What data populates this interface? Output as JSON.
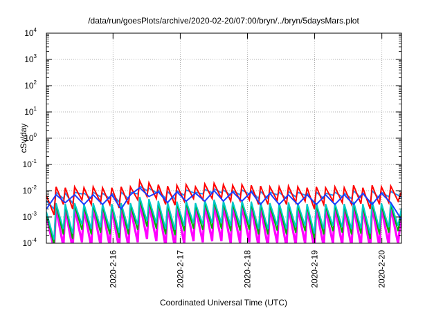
{
  "chart_data": {
    "type": "line",
    "title": "/data/run/goesPlots/archive/2020-02-20/07:00/bryn/../bryn/5daysMars.plot",
    "xlabel": "Coordinated Universal Time (UTC)",
    "ylabel": "cSv/day",
    "yscale": "log",
    "ylim": [
      0.0001,
      10000
    ],
    "xlim": [
      "2020-02-15T00:12",
      "2020-02-20T07:00"
    ],
    "grid": true,
    "y_ticks": [
      {
        "base": "10",
        "exp": "-4"
      },
      {
        "base": "10",
        "exp": "-3"
      },
      {
        "base": "10",
        "exp": "-2"
      },
      {
        "base": "10",
        "exp": "-1"
      },
      {
        "base": "10",
        "exp": "0"
      },
      {
        "base": "10",
        "exp": "1"
      },
      {
        "base": "10",
        "exp": "2"
      },
      {
        "base": "10",
        "exp": "3"
      },
      {
        "base": "10",
        "exp": "4"
      }
    ],
    "x_ticks": [
      "2020-2-16",
      "2020-2-17",
      "2020-2-18",
      "2020-2-19",
      "2020-2-20"
    ],
    "series_colors": [
      "#ff0000",
      "#1a3cff",
      "#00c8c8",
      "#00b000",
      "#ff00ff",
      "#1e90ff"
    ],
    "series": [
      {
        "color": "#ff0000",
        "x": [
          "2020-02-15T00:12",
          "2020-02-15T02:56",
          "2020-02-15T03:39",
          "2020-02-15T06:17",
          "2020-02-15T06:57",
          "2020-02-15T09:36",
          "2020-02-15T10:17",
          "2020-02-15T12:55",
          "2020-02-15T13:37",
          "2020-02-15T16:14",
          "2020-02-15T16:55",
          "2020-02-15T19:33",
          "2020-02-15T20:15",
          "2020-02-15T22:52",
          "2020-02-15T23:34",
          "2020-02-16T02:12",
          "2020-02-16T02:53",
          "2020-02-16T05:31",
          "2020-02-16T06:12",
          "2020-02-16T08:50",
          "2020-02-16T09:31",
          "2020-02-16T12:09",
          "2020-02-16T12:50",
          "2020-02-16T15:28",
          "2020-02-16T16:10",
          "2020-02-16T18:48",
          "2020-02-16T19:29",
          "2020-02-16T22:07",
          "2020-02-16T22:48",
          "2020-02-17T01:26",
          "2020-02-17T02:07",
          "2020-02-17T04:45",
          "2020-02-17T05:26",
          "2020-02-17T08:04",
          "2020-02-17T08:46",
          "2020-02-17T11:24",
          "2020-02-17T12:05",
          "2020-02-17T14:43",
          "2020-02-17T15:24",
          "2020-02-17T18:02",
          "2020-02-17T18:43",
          "2020-02-17T21:21",
          "2020-02-17T22:02",
          "2020-02-18T00:40",
          "2020-02-18T01:22",
          "2020-02-18T03:59",
          "2020-02-18T04:41",
          "2020-02-18T07:19",
          "2020-02-18T08:00",
          "2020-02-18T10:38",
          "2020-02-18T11:19",
          "2020-02-18T13:57",
          "2020-02-18T14:38",
          "2020-02-18T17:16",
          "2020-02-18T17:58",
          "2020-02-18T20:35",
          "2020-02-18T21:17",
          "2020-02-18T23:55",
          "2020-02-19T00:36",
          "2020-02-19T03:14",
          "2020-02-19T03:55",
          "2020-02-19T06:33",
          "2020-02-19T07:14",
          "2020-02-19T09:52",
          "2020-02-19T10:34",
          "2020-02-19T13:11",
          "2020-02-19T13:53",
          "2020-02-19T16:31",
          "2020-02-19T17:12",
          "2020-02-19T19:50",
          "2020-02-19T20:31",
          "2020-02-19T23:09",
          "2020-02-19T23:50",
          "2020-02-20T02:28",
          "2020-02-20T03:10",
          "2020-02-20T05:47",
          "2020-02-20T07:00"
        ],
        "y": [
          0.0065,
          0.0012,
          0.014,
          0.003,
          0.013,
          0.002,
          0.014,
          0.0045,
          0.013,
          0.003,
          0.014,
          0.0035,
          0.013,
          0.003,
          0.013,
          0.0022,
          0.014,
          0.003,
          0.014,
          0.0045,
          0.024,
          0.006,
          0.02,
          0.005,
          0.017,
          0.003,
          0.015,
          0.0028,
          0.016,
          0.004,
          0.017,
          0.005,
          0.014,
          0.0045,
          0.018,
          0.005,
          0.019,
          0.005,
          0.017,
          0.004,
          0.016,
          0.0042,
          0.017,
          0.0045,
          0.016,
          0.003,
          0.015,
          0.003,
          0.014,
          0.0042,
          0.014,
          0.003,
          0.015,
          0.0035,
          0.014,
          0.004,
          0.013,
          0.002,
          0.014,
          0.003,
          0.013,
          0.004,
          0.014,
          0.0035,
          0.013,
          0.003,
          0.016,
          0.0032,
          0.013,
          0.002,
          0.016,
          0.003,
          0.014,
          0.0035,
          0.015,
          0.004,
          0.009
        ]
      },
      {
        "color": "#1a3cff",
        "x": [
          "2020-02-15T00:12",
          "2020-02-15T03:39",
          "2020-02-15T06:57",
          "2020-02-15T10:17",
          "2020-02-15T13:37",
          "2020-02-15T16:55",
          "2020-02-15T20:15",
          "2020-02-15T23:34",
          "2020-02-16T02:53",
          "2020-02-16T06:12",
          "2020-02-16T09:31",
          "2020-02-16T12:50",
          "2020-02-16T16:10",
          "2020-02-16T19:29",
          "2020-02-16T22:48",
          "2020-02-17T02:07",
          "2020-02-17T05:26",
          "2020-02-17T08:46",
          "2020-02-17T12:05",
          "2020-02-17T15:24",
          "2020-02-17T18:43",
          "2020-02-17T22:02",
          "2020-02-18T01:22",
          "2020-02-18T04:41",
          "2020-02-18T08:00",
          "2020-02-18T11:19",
          "2020-02-18T14:38",
          "2020-02-18T17:58",
          "2020-02-18T21:17",
          "2020-02-19T00:36",
          "2020-02-19T03:55",
          "2020-02-19T07:14",
          "2020-02-19T10:34",
          "2020-02-19T13:53",
          "2020-02-19T17:12",
          "2020-02-19T20:31",
          "2020-02-19T23:50",
          "2020-02-20T03:10",
          "2020-02-20T07:00"
        ],
        "y": [
          0.002,
          0.007,
          0.0035,
          0.007,
          0.003,
          0.007,
          0.003,
          0.007,
          0.002,
          0.007,
          0.013,
          0.006,
          0.009,
          0.0035,
          0.009,
          0.004,
          0.008,
          0.004,
          0.01,
          0.004,
          0.009,
          0.004,
          0.009,
          0.003,
          0.008,
          0.003,
          0.007,
          0.003,
          0.007,
          0.003,
          0.007,
          0.003,
          0.007,
          0.003,
          0.008,
          0.003,
          0.008,
          0.0035,
          0.0008
        ]
      }
    ]
  }
}
